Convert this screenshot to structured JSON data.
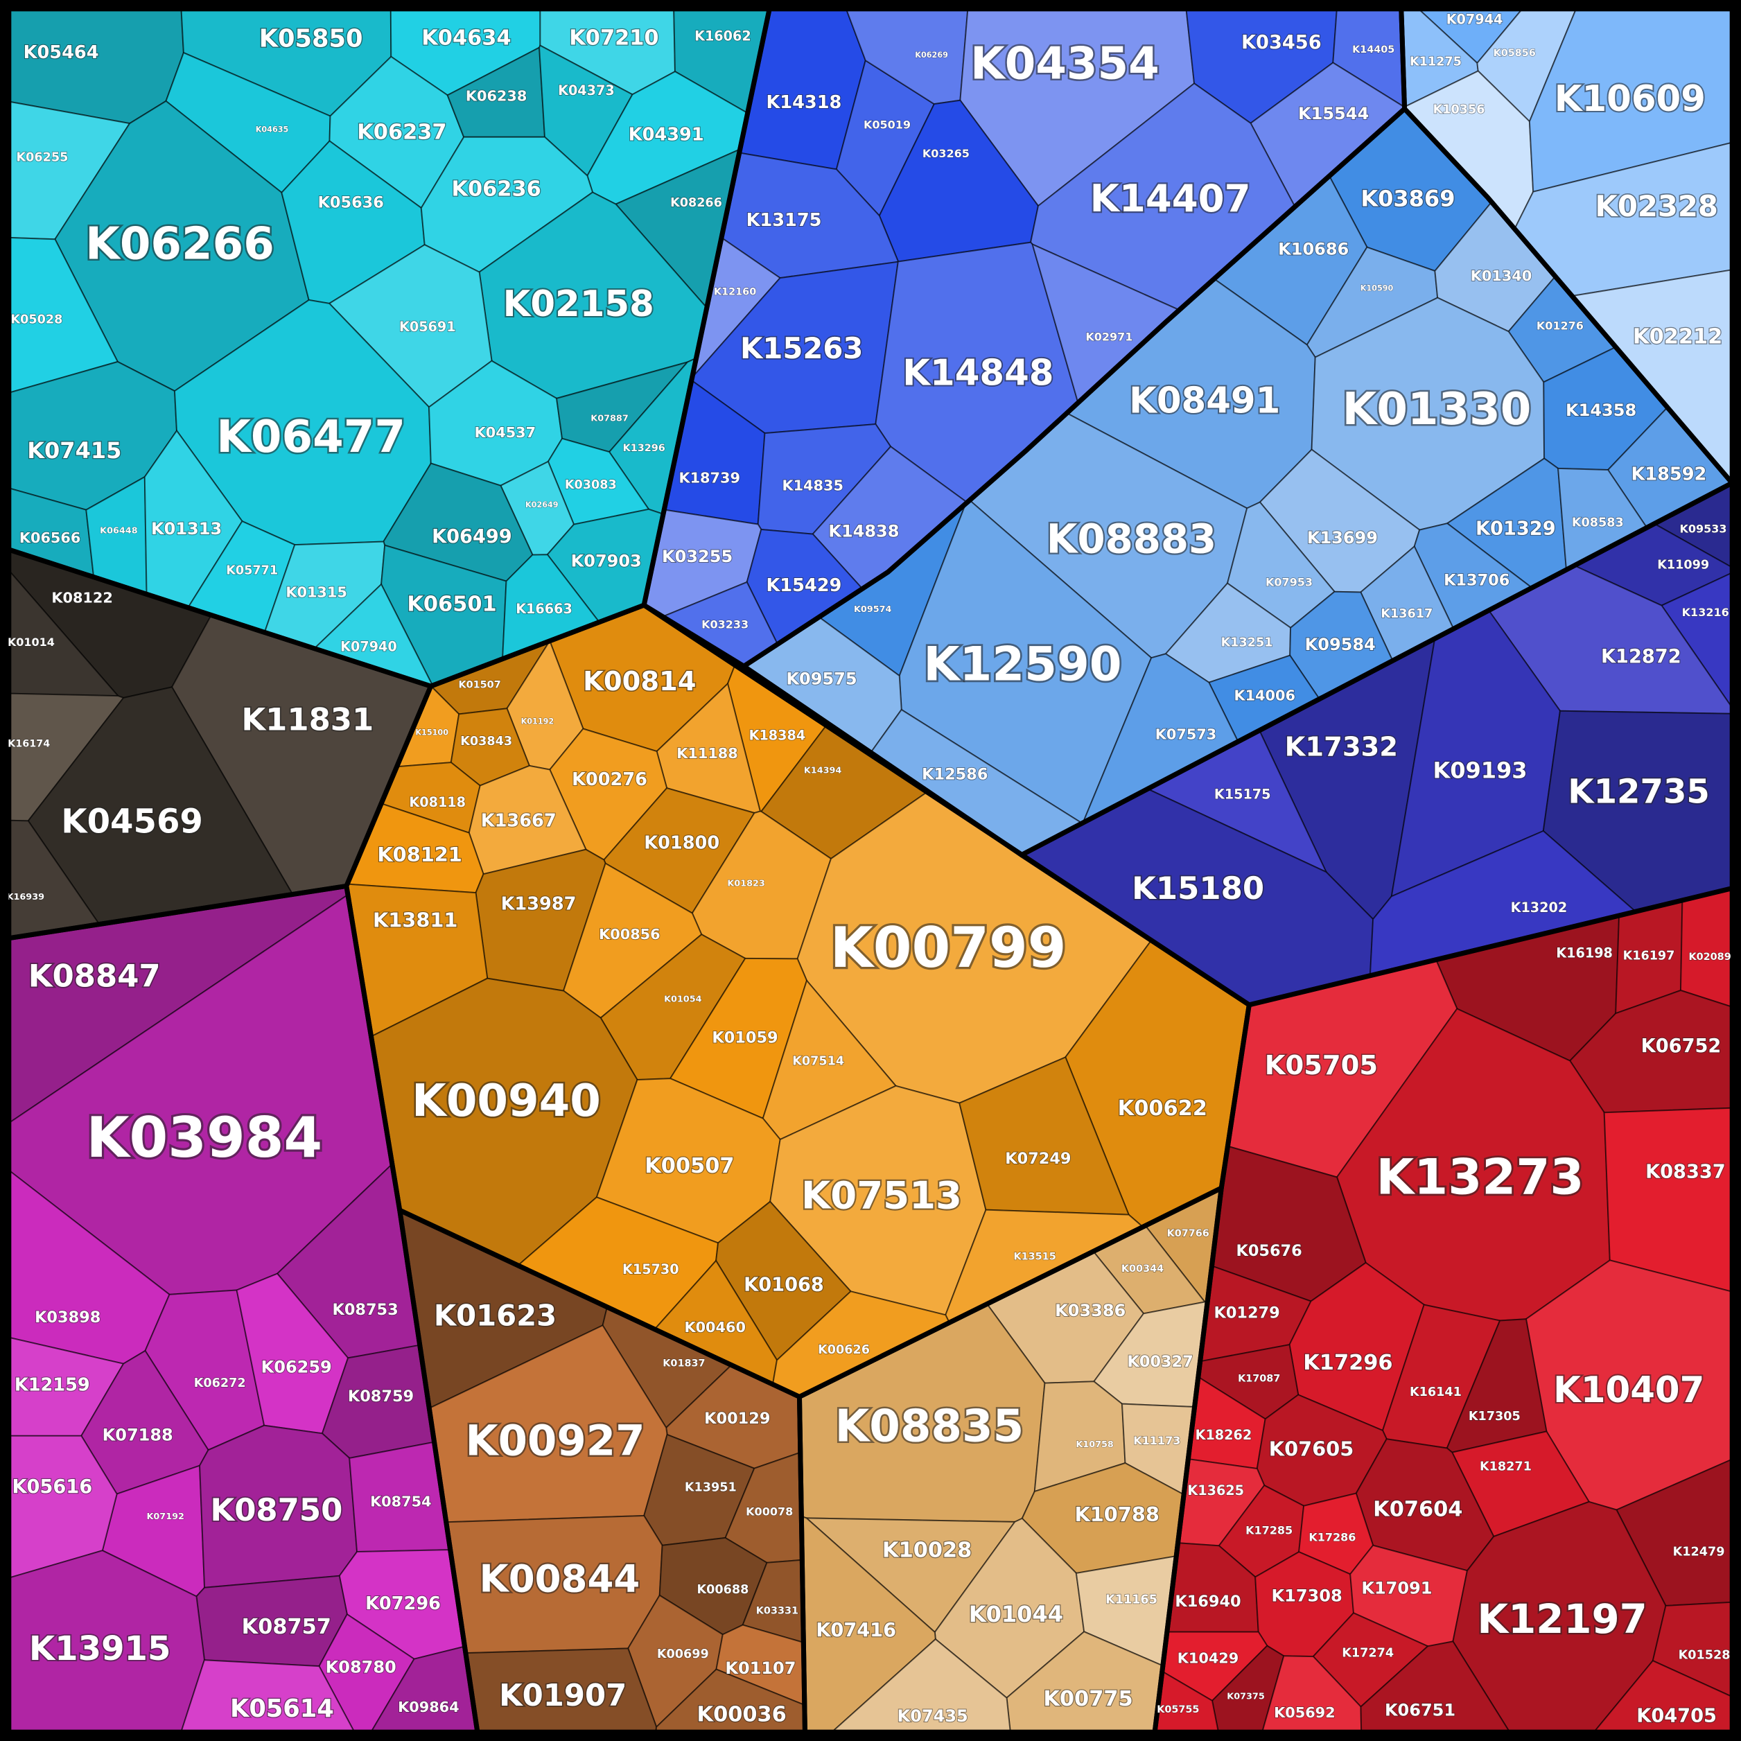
{
  "groups": [
    {
      "cells": [
        "K05464",
        "K05850",
        "K04634",
        "K07210",
        "K16062",
        "K04635",
        "K06237",
        "K06238",
        "K04373",
        "K04391",
        "K06255",
        "K06266",
        "K05636",
        "K06236",
        "K08266",
        "K02158",
        "K05028",
        "K05691",
        "K07415",
        "K06477",
        "K04537",
        "K07887",
        "K13296",
        "K03083",
        "K02649",
        "K06566",
        "K06448",
        "K01313",
        "K06499",
        "K07903",
        "K05771",
        "K01315",
        "K06501",
        "K16663",
        "K07940"
      ]
    },
    {
      "cells": [
        "K08122",
        "K01014",
        "K11831",
        "K16174",
        "K04569",
        "K16939"
      ]
    },
    {
      "cells": [
        "K08847",
        "K03984",
        "K03898",
        "K12159",
        "K08753",
        "K06272",
        "K06259",
        "K08759",
        "K07188",
        "K07192",
        "K05616",
        "K08750",
        "K08754",
        "K07296",
        "K08757",
        "K13915",
        "K08780",
        "K05614",
        "K09864"
      ]
    },
    {
      "cells": [
        "K01507",
        "K00814",
        "K15100",
        "K01192",
        "K03843",
        "K18384",
        "K11188",
        "K14394",
        "K08118",
        "K00276",
        "K13667",
        "K01800",
        "K08121",
        "K01823",
        "K13987",
        "K13811",
        "K00856",
        "K00799",
        "K01054",
        "K01059",
        "K07514",
        "K00940",
        "K00622",
        "K00507",
        "K07513",
        "K07249",
        "K15730",
        "K13515",
        "K01068",
        "K00460",
        "K00626"
      ]
    },
    {
      "cells": [
        "K01623",
        "K01837",
        "K00129",
        "K00927",
        "K13951",
        "K00078",
        "K00844",
        "K00688",
        "K03331",
        "K00699",
        "K01107",
        "K01907",
        "K00036"
      ]
    },
    {
      "cells": [
        "K07766",
        "K00344",
        "K03386",
        "K00327",
        "K08835",
        "K10758",
        "K11173",
        "K10788",
        "K10028",
        "K01044",
        "K11165",
        "K07416",
        "K00775",
        "K07435"
      ]
    },
    {
      "cells": [
        "K16198",
        "K16197",
        "K02089",
        "K05705",
        "K06752",
        "K13273",
        "K08337",
        "K05676",
        "K01279",
        "K17296",
        "K10407",
        "K17087",
        "K16141",
        "K18262",
        "K17305",
        "K07605",
        "K18271",
        "K13625",
        "K07604",
        "K17285",
        "K17286",
        "K12479",
        "K16940",
        "K17308",
        "K17091",
        "K12197",
        "K17274",
        "K10429",
        "K07375",
        "K01528",
        "K05755",
        "K05692",
        "K06751",
        "K04705"
      ]
    },
    {
      "cells": [
        "K14318",
        "K05019",
        "K06269",
        "K04354",
        "K03456",
        "K14405",
        "K15544",
        "K03265",
        "K13175",
        "K14407",
        "K12160",
        "K15263",
        "K14848",
        "K02971",
        "K18739",
        "K14835",
        "K14838",
        "K03255",
        "K15429",
        "K03233"
      ]
    },
    {
      "cells": [
        "K07944",
        "K11275",
        "K05856",
        "K10356",
        "K10609",
        "K02328",
        "K02212"
      ]
    },
    {
      "cells": [
        "K03869",
        "K10686",
        "K10590",
        "K01340",
        "K01276",
        "K08491",
        "K01330",
        "K14358",
        "K18592",
        "K08883",
        "K13699",
        "K01329",
        "K08583",
        "K07953",
        "K09574",
        "K13706",
        "K13617",
        "K13251",
        "K09584",
        "K12590",
        "K09575",
        "K14006",
        "K07573",
        "K12586"
      ]
    },
    {
      "cells": [
        "K09533",
        "K11099",
        "K13216",
        "K12872",
        "K17332",
        "K09193",
        "K15175",
        "K12735",
        "K15180",
        "K13202"
      ]
    }
  ]
}
